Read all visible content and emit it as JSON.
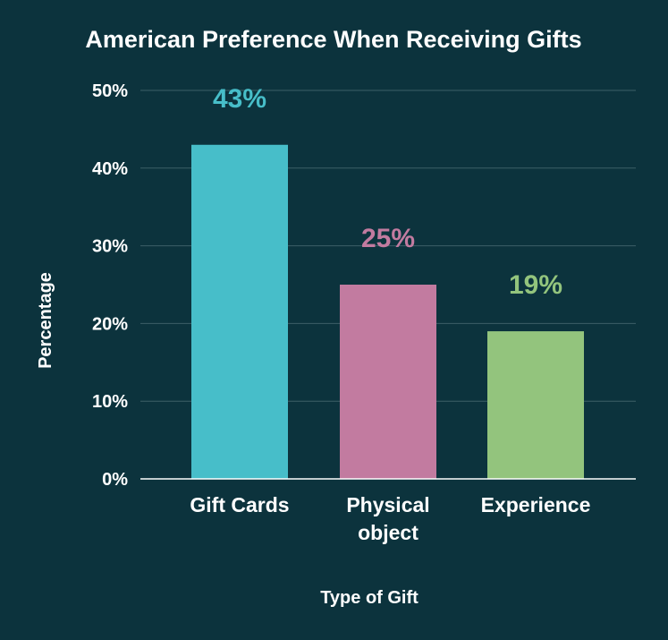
{
  "chart_data": {
    "type": "bar",
    "title": "American Preference When Receiving Gifts",
    "xlabel": "Type of Gift",
    "ylabel": "Percentage",
    "categories": [
      [
        "Gift Cards"
      ],
      [
        "Physical",
        "object"
      ],
      [
        "Experience"
      ]
    ],
    "values": [
      43,
      25,
      19
    ],
    "value_labels": [
      "43%",
      "25%",
      "19%"
    ],
    "bar_colors": [
      "#47bec9",
      "#c27ba0",
      "#93c47d"
    ],
    "ylim": [
      0,
      50
    ],
    "yticks": [
      {
        "value": 0,
        "label": "0%"
      },
      {
        "value": 10,
        "label": "10%"
      },
      {
        "value": 20,
        "label": "20%"
      },
      {
        "value": 30,
        "label": "30%"
      },
      {
        "value": 40,
        "label": "40%"
      },
      {
        "value": 50,
        "label": "50%"
      }
    ],
    "grid": true,
    "legend": "none"
  },
  "colors": {
    "background": "#0c333d",
    "text": "#ffffff",
    "grid": "#3d5f67"
  }
}
